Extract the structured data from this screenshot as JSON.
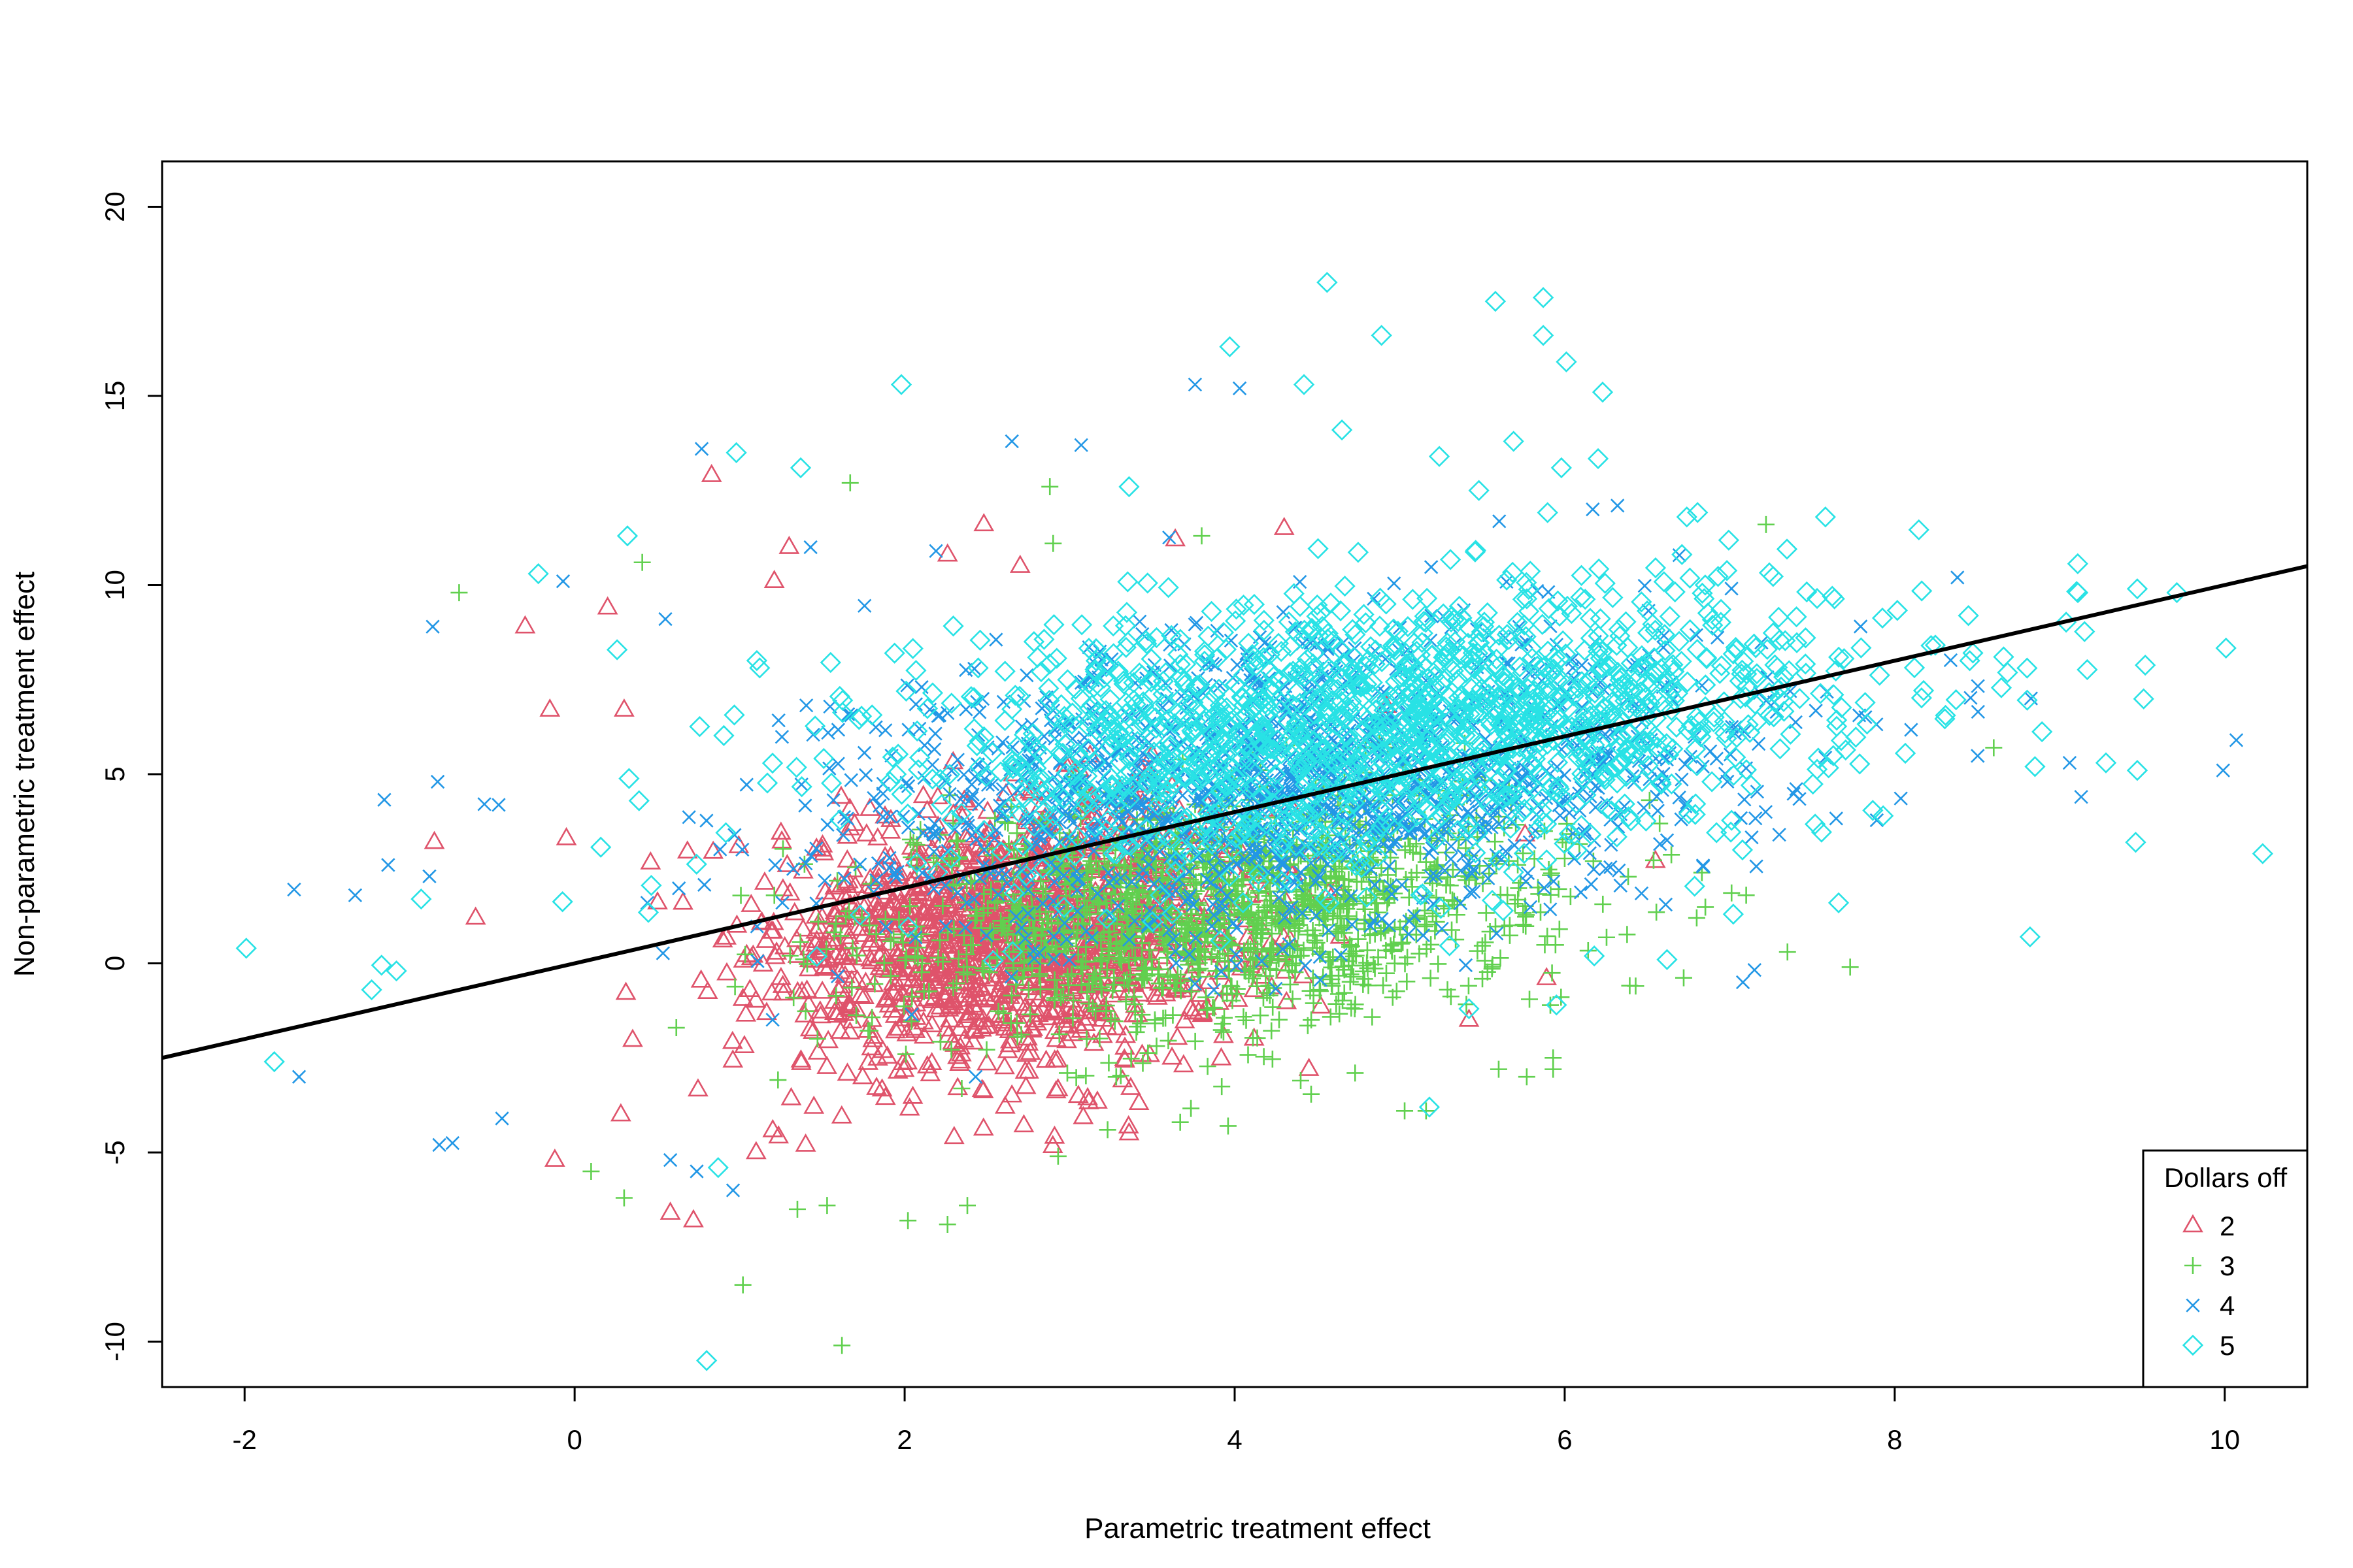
{
  "chart_data": {
    "type": "scatter",
    "title": "",
    "xlabel": "Parametric treatment effect",
    "ylabel": "Non-parametric treatment effect",
    "xlim": [
      -2.5,
      10.5
    ],
    "ylim": [
      -11.2,
      21.2
    ],
    "xticks": [
      "-2",
      "0",
      "2",
      "4",
      "6",
      "8",
      "10"
    ],
    "yticks": [
      "-10",
      "-5",
      "0",
      "5",
      "10",
      "15",
      "20"
    ],
    "xtick_values": [
      -2,
      0,
      2,
      4,
      6,
      8,
      10
    ],
    "ytick_values": [
      -10,
      -5,
      0,
      5,
      10,
      15,
      20
    ],
    "grid": false,
    "legend": {
      "title": "Dollars off",
      "position": "bottom-right",
      "entries": [
        {
          "label": "2",
          "symbol": "triangle",
          "color": "#DF536B"
        },
        {
          "label": "3",
          "symbol": "plus",
          "color": "#61D04F"
        },
        {
          "label": "4",
          "symbol": "cross",
          "color": "#2297E6"
        },
        {
          "label": "5",
          "symbol": "diamond",
          "color": "#28E2E5"
        }
      ]
    },
    "reference_line": {
      "intercept": 0.0,
      "slope": 1.0,
      "color": "#000000",
      "description": "y = x"
    },
    "series": [
      {
        "name": "2",
        "symbol": "triangle",
        "color": "#DF536B",
        "cluster": {
          "x_center": 2.7,
          "y_center": 0.8,
          "x_sd": 0.75,
          "y_sd": 1.7,
          "n": 1500
        },
        "points": [
          [
            0.83,
            12.9
          ],
          [
            1.3,
            11.0
          ],
          [
            1.21,
            10.1
          ],
          [
            2.48,
            11.6
          ],
          [
            2.26,
            10.8
          ],
          [
            2.7,
            10.5
          ],
          [
            3.64,
            11.2
          ],
          [
            4.3,
            11.5
          ],
          [
            -0.3,
            8.9
          ],
          [
            0.2,
            9.4
          ],
          [
            -0.15,
            6.7
          ],
          [
            -0.85,
            3.2
          ],
          [
            -0.6,
            1.2
          ],
          [
            -0.05,
            3.3
          ],
          [
            0.3,
            6.7
          ],
          [
            4.92,
            6.8
          ],
          [
            5.76,
            3.4
          ],
          [
            -0.12,
            -5.2
          ],
          [
            0.28,
            -4.0
          ],
          [
            0.58,
            -6.6
          ],
          [
            0.72,
            -6.8
          ],
          [
            1.1,
            -5.0
          ],
          [
            1.4,
            -4.8
          ],
          [
            2.3,
            -4.6
          ],
          [
            2.65,
            -3.5
          ],
          [
            3.32,
            -3.1
          ],
          [
            3.37,
            -3.3
          ],
          [
            3.36,
            -4.5
          ],
          [
            3.42,
            -3.7
          ],
          [
            1.45,
            -3.8
          ],
          [
            3.62,
            -2.5
          ],
          [
            4.45,
            -2.8
          ],
          [
            5.42,
            -1.5
          ],
          [
            5.89,
            -0.4
          ],
          [
            6.55,
            2.7
          ]
        ]
      },
      {
        "name": "3",
        "symbol": "plus",
        "color": "#61D04F",
        "cluster": {
          "x_center": 3.9,
          "y_center": 1.4,
          "x_sd": 1.0,
          "y_sd": 1.5,
          "n": 1500
        },
        "points": [
          [
            -0.7,
            9.8
          ],
          [
            0.41,
            10.6
          ],
          [
            1.67,
            12.7
          ],
          [
            2.88,
            12.6
          ],
          [
            2.9,
            11.1
          ],
          [
            3.8,
            11.3
          ],
          [
            7.22,
            11.6
          ],
          [
            0.1,
            -5.5
          ],
          [
            0.3,
            -6.2
          ],
          [
            1.02,
            -8.5
          ],
          [
            1.62,
            -10.1
          ],
          [
            1.35,
            -6.5
          ],
          [
            1.53,
            -6.4
          ],
          [
            2.02,
            -6.8
          ],
          [
            2.26,
            -6.9
          ],
          [
            2.38,
            -6.4
          ],
          [
            2.93,
            -5.1
          ],
          [
            3.23,
            -4.4
          ],
          [
            3.67,
            -4.2
          ],
          [
            3.96,
            -4.3
          ],
          [
            4.4,
            -3.1
          ],
          [
            4.73,
            -2.9
          ],
          [
            5.03,
            -3.9
          ],
          [
            5.16,
            -3.9
          ],
          [
            5.6,
            -2.8
          ],
          [
            5.77,
            -3.0
          ],
          [
            5.93,
            -2.5
          ],
          [
            5.93,
            -2.8
          ],
          [
            6.43,
            -0.6
          ],
          [
            7.35,
            0.3
          ],
          [
            7.73,
            -0.1
          ],
          [
            8.6,
            5.7
          ],
          [
            6.8,
            1.2
          ],
          [
            7.1,
            1.8
          ]
        ]
      },
      {
        "name": "4",
        "symbol": "cross",
        "color": "#2297E6",
        "cluster": {
          "x_center": 4.3,
          "y_center": 4.8,
          "x_sd": 1.4,
          "y_sd": 1.9,
          "n": 1500
        },
        "points": [
          [
            0.77,
            13.6
          ],
          [
            2.65,
            13.8
          ],
          [
            3.07,
            13.7
          ],
          [
            3.76,
            15.3
          ],
          [
            4.03,
            15.2
          ],
          [
            1.43,
            11.0
          ],
          [
            2.19,
            10.9
          ],
          [
            6.32,
            12.1
          ],
          [
            6.17,
            12.0
          ],
          [
            -0.86,
            8.9
          ],
          [
            -0.07,
            10.1
          ],
          [
            0.55,
            9.1
          ],
          [
            -1.7,
            1.95
          ],
          [
            -1.33,
            1.8
          ],
          [
            -1.13,
            2.6
          ],
          [
            -0.88,
            2.3
          ],
          [
            -0.83,
            4.8
          ],
          [
            -0.82,
            -4.8
          ],
          [
            -0.74,
            -4.75
          ],
          [
            -1.67,
            -3.0
          ],
          [
            -0.44,
            -4.1
          ],
          [
            0.96,
            -6.0
          ],
          [
            0.58,
            -5.2
          ],
          [
            0.74,
            -5.5
          ],
          [
            2.43,
            -3.0
          ],
          [
            7.08,
            -0.5
          ],
          [
            8.38,
            10.2
          ],
          [
            9.13,
            4.4
          ],
          [
            9.06,
            5.3
          ],
          [
            10.07,
            5.9
          ],
          [
            9.99,
            5.1
          ],
          [
            5.4,
            -0.05
          ],
          [
            7.3,
            3.4
          ]
        ]
      },
      {
        "name": "5",
        "symbol": "diamond",
        "color": "#28E2E5",
        "cluster": {
          "x_center": 4.9,
          "y_center": 6.3,
          "x_sd": 1.5,
          "y_sd": 1.8,
          "n": 1500
        },
        "points": [
          [
            4.56,
            18.0
          ],
          [
            5.58,
            17.5
          ],
          [
            5.87,
            17.6
          ],
          [
            5.87,
            16.6
          ],
          [
            4.89,
            16.6
          ],
          [
            6.01,
            15.9
          ],
          [
            6.23,
            15.1
          ],
          [
            3.97,
            16.3
          ],
          [
            4.42,
            15.3
          ],
          [
            4.65,
            14.1
          ],
          [
            5.69,
            13.8
          ],
          [
            5.24,
            13.4
          ],
          [
            5.98,
            13.1
          ],
          [
            5.48,
            12.5
          ],
          [
            1.98,
            15.3
          ],
          [
            0.98,
            13.5
          ],
          [
            1.37,
            13.1
          ],
          [
            3.36,
            12.6
          ],
          [
            0.32,
            11.3
          ],
          [
            -0.22,
            10.3
          ],
          [
            6.74,
            11.8
          ],
          [
            7.58,
            11.8
          ],
          [
            -1.99,
            0.4
          ],
          [
            -1.82,
            -2.6
          ],
          [
            -1.23,
            -0.7
          ],
          [
            -1.08,
            -0.2
          ],
          [
            -1.17,
            -0.05
          ],
          [
            -0.93,
            1.7
          ],
          [
            0.8,
            -10.5
          ],
          [
            0.87,
            -5.4
          ],
          [
            5.18,
            -3.8
          ],
          [
            5.95,
            -1.1
          ],
          [
            5.42,
            -1.2
          ],
          [
            6.62,
            0.1
          ],
          [
            7.66,
            1.6
          ],
          [
            8.82,
            0.7
          ],
          [
            9.46,
            3.2
          ],
          [
            10.23,
            2.9
          ],
          [
            9.11,
            9.8
          ],
          [
            9.47,
            9.9
          ],
          [
            9.71,
            9.8
          ],
          [
            8.85,
            5.2
          ],
          [
            9.28,
            5.3
          ],
          [
            9.47,
            5.1
          ],
          [
            8.22,
            8.4
          ],
          [
            8.66,
            8.1
          ],
          [
            7.63,
            7.1
          ],
          [
            7.93,
            3.9
          ]
        ]
      }
    ]
  }
}
